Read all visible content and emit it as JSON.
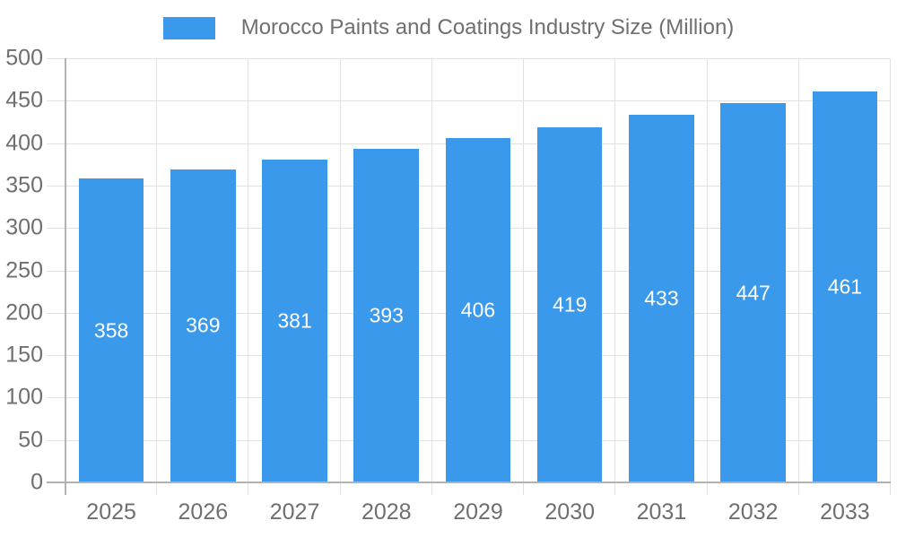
{
  "chart_data": {
    "type": "bar",
    "title": "Morocco Paints and Coatings Industry Size (Million)",
    "categories": [
      "2025",
      "2026",
      "2027",
      "2028",
      "2029",
      "2030",
      "2031",
      "2032",
      "2033"
    ],
    "values": [
      358,
      369,
      381,
      393,
      406,
      419,
      433,
      447,
      461
    ],
    "xlabel": "",
    "ylabel": "",
    "ylim": [
      0,
      500
    ],
    "yticks": [
      0,
      50,
      100,
      150,
      200,
      250,
      300,
      350,
      400,
      450,
      500
    ],
    "grid": true,
    "legend_position": "top-center",
    "bar_color": "#3B99EC",
    "bar_label_color": "#ffffff",
    "text_color": "#6f6f6f",
    "grid_color": "#e2e2e2",
    "axis_line_color": "#b2b2b2",
    "background": "#ffffff"
  }
}
